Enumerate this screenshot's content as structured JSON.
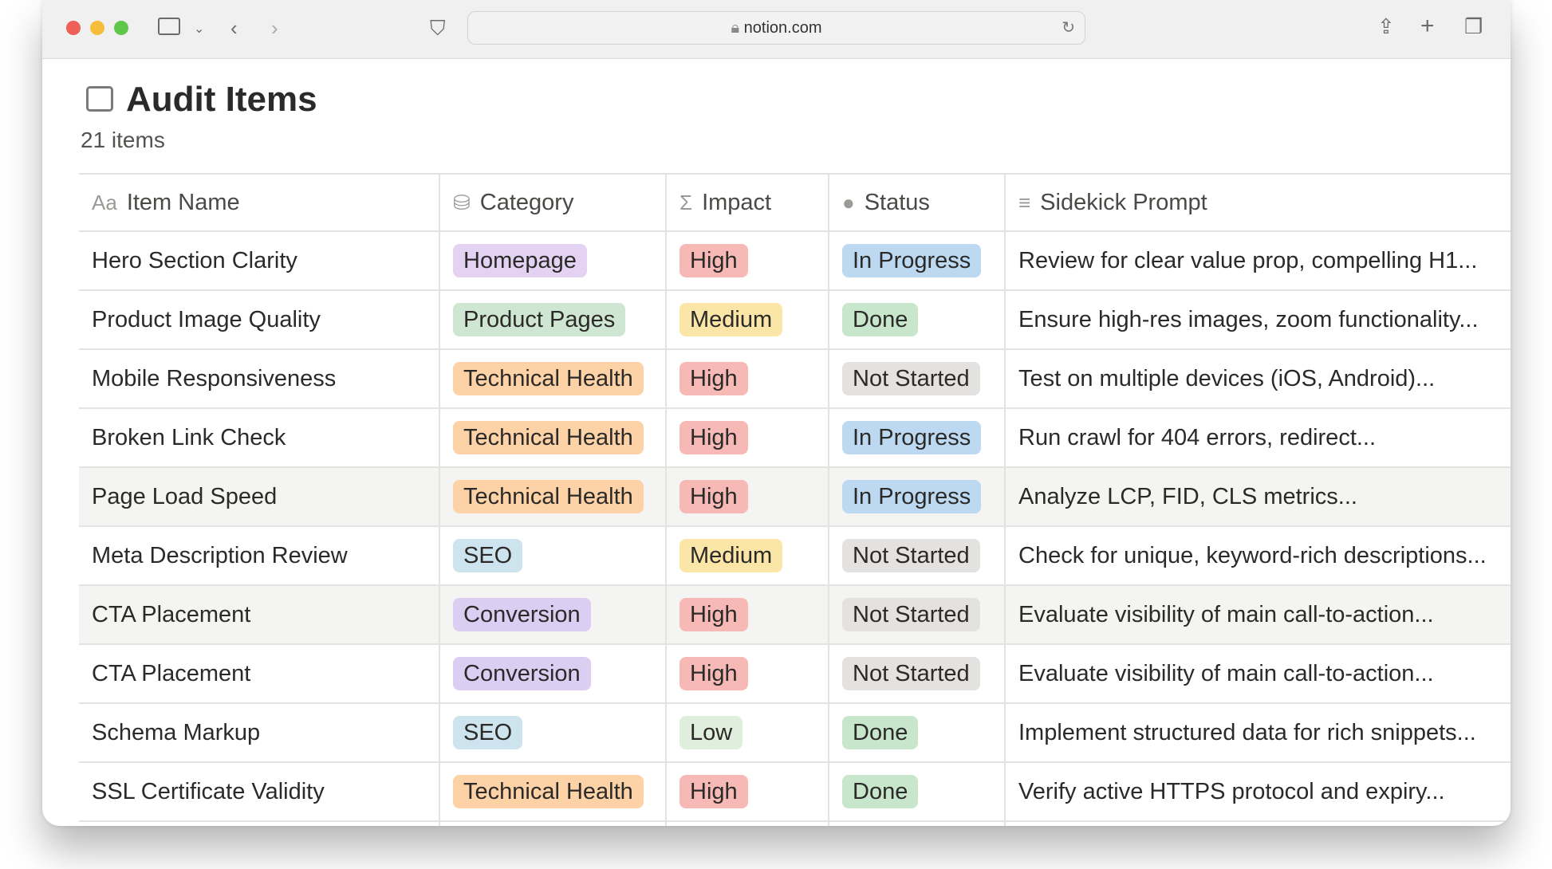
{
  "browser": {
    "url": "notion.com"
  },
  "page": {
    "title": "Audit Items",
    "count": "21 items"
  },
  "columns": [
    "Item Name",
    "Category",
    "Impact",
    "Status",
    "Sidekick Prompt"
  ],
  "colors": {
    "Homepage": "#e3d2f1",
    "Product Pages": "#cfe6d2",
    "Technical Health": "#fcd2a6",
    "SEO": "#cde4ee",
    "Conversion": "#dccdf2",
    "High": "#f6b9b6",
    "Medium": "#fbe6a8",
    "Low": "#dfeedd",
    "In Progress": "#bcd9f1",
    "Done": "#c7e6cb",
    "Not Started": "#e3e2e0"
  },
  "rows": [
    {
      "name": "Hero Section Clarity",
      "category": "Homepage",
      "impact": "High",
      "status": "In Progress",
      "prompt": "Review for clear value prop, compelling H1..."
    },
    {
      "name": "Product Image Quality",
      "category": "Product Pages",
      "impact": "Medium",
      "status": "Done",
      "prompt": "Ensure high-res images, zoom functionality..."
    },
    {
      "name": "Mobile Responsiveness",
      "category": "Technical Health",
      "impact": "High",
      "status": "Not Started",
      "prompt": "Test on multiple devices (iOS, Android)..."
    },
    {
      "name": "Broken Link Check",
      "category": "Technical Health",
      "impact": "High",
      "status": "In Progress",
      "prompt": "Run crawl for 404 errors, redirect..."
    },
    {
      "name": "Page Load Speed",
      "category": "Technical Health",
      "impact": "High",
      "status": "In Progress",
      "prompt": "Analyze LCP, FID, CLS metrics...",
      "highlighted": true
    },
    {
      "name": "Meta Description Review",
      "category": "SEO",
      "impact": "Medium",
      "status": "Not Started",
      "prompt": "Check for unique, keyword-rich descriptions..."
    },
    {
      "name": "CTA Placement",
      "category": "Conversion",
      "impact": "High",
      "status": "Not Started",
      "prompt": "Evaluate visibility of main call-to-action...",
      "highlighted": true
    },
    {
      "name": "CTA Placement",
      "category": "Conversion",
      "impact": "High",
      "status": "Not Started",
      "prompt": "Evaluate visibility of main call-to-action..."
    },
    {
      "name": "Schema Markup",
      "category": "SEO",
      "impact": "Low",
      "status": "Done",
      "prompt": "Implement structured data for rich snippets..."
    },
    {
      "name": "SSL Certificate Validity",
      "category": "Technical Health",
      "impact": "High",
      "status": "Done",
      "prompt": "Verify active HTTPS protocol and expiry..."
    }
  ]
}
